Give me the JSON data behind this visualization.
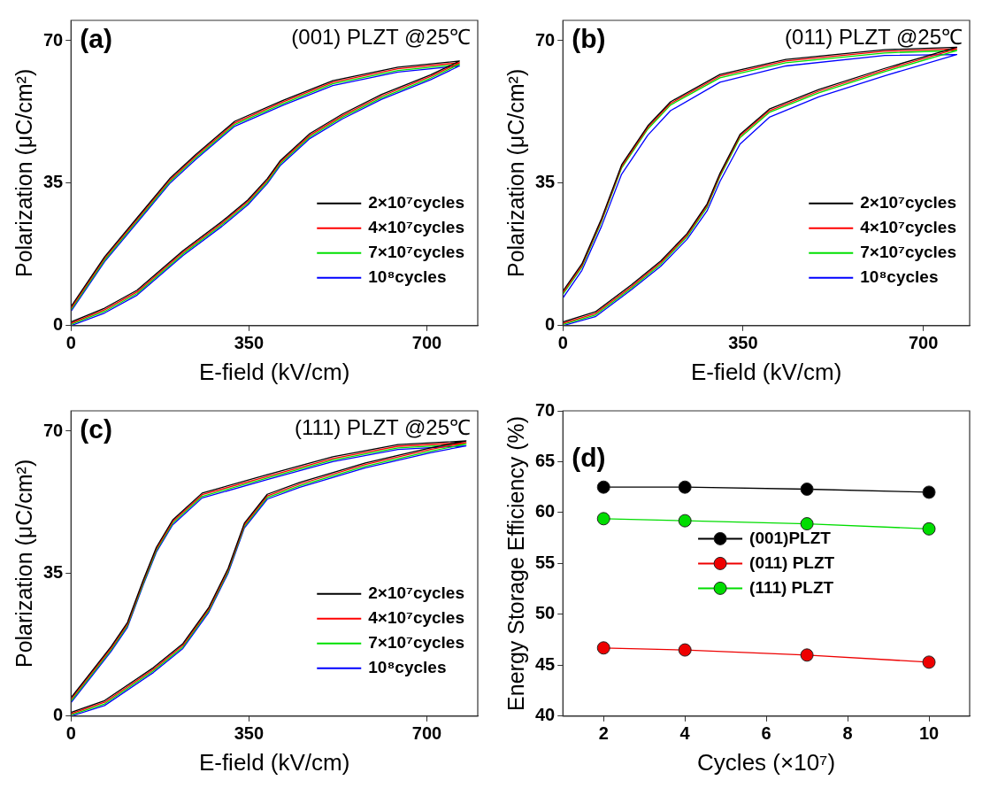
{
  "chart_data": [
    {
      "type": "line",
      "xlabel": "E-field (kV/cm)",
      "ylabel": "Polarization (μC/cm²)",
      "annotations": [
        "(a)",
        "(001) PLZT @25℃"
      ],
      "xlim": [
        0,
        800
      ],
      "ylim": [
        0,
        75
      ],
      "xticks": [
        0,
        350,
        700
      ],
      "yticks": [
        0,
        35,
        70
      ],
      "grid": false,
      "legend": "bottom right",
      "marker": "none",
      "line_style": "solid",
      "x": [
        0,
        66,
        130,
        220,
        297,
        348,
        386,
        412,
        470,
        534,
        611,
        707,
        764,
        643,
        515,
        418,
        322,
        245,
        194,
        130,
        66,
        0
      ],
      "series": [
        {
          "name": "2×10⁷cycles",
          "color": "#000000",
          "values": [
            0.9,
            4.3,
            8.7,
            18.4,
            25.6,
            30.9,
            36.1,
            40.6,
            47.2,
            52,
            56.8,
            61.6,
            65,
            63.5,
            60.2,
            55.4,
            50.2,
            42,
            36.1,
            26.5,
            16.9,
            4.7
          ]
        },
        {
          "name": "4×10⁷cycles",
          "color": "#ff0000",
          "values": [
            0.6,
            3.9,
            8.3,
            18,
            25.2,
            30.5,
            35.7,
            40.2,
            46.8,
            51.6,
            56.4,
            61.2,
            64.6,
            63.1,
            59.8,
            55,
            49.8,
            41.6,
            35.7,
            26.1,
            16.5,
            4.3
          ]
        },
        {
          "name": "7×10⁷cycles",
          "color": "#00e000",
          "values": [
            0.3,
            3.5,
            7.9,
            17.6,
            24.8,
            30.1,
            35.3,
            39.8,
            46.4,
            51.2,
            56,
            60.8,
            64.2,
            62.7,
            59.4,
            54.6,
            49.4,
            41.2,
            35.3,
            25.7,
            16.1,
            3.9
          ]
        },
        {
          "name": "10⁸cycles",
          "color": "#0000ff",
          "values": [
            0,
            3.1,
            7.5,
            17.2,
            24.4,
            29.7,
            34.9,
            39.4,
            46,
            50.8,
            55.6,
            60.4,
            63.8,
            62.3,
            59,
            54.2,
            49,
            40.8,
            34.9,
            25.3,
            15.7,
            3.5
          ]
        }
      ]
    },
    {
      "type": "line",
      "xlabel": "E-field (kV/cm)",
      "ylabel": "Polarization (μC/cm²)",
      "annotations": [
        "(b)",
        "(011) PLZT @25℃"
      ],
      "xlim": [
        0,
        790
      ],
      "ylim": [
        0,
        75
      ],
      "xticks": [
        0,
        350,
        700
      ],
      "yticks": [
        0,
        35,
        70
      ],
      "grid": false,
      "legend": "bottom right",
      "marker": "none",
      "line_style": "solid",
      "x": [
        0,
        63,
        133,
        190,
        241,
        280,
        305,
        344,
        401,
        497,
        625,
        765,
        625,
        433,
        305,
        209,
        165,
        114,
        75,
        37,
        0
      ],
      "series": [
        {
          "name": "2×10⁷cycles",
          "color": "#000000",
          "values": [
            0.9,
            3.4,
            10,
            15.9,
            22.6,
            29.9,
            37.4,
            47,
            53.2,
            58,
            63.2,
            68.4,
            67.8,
            65.4,
            61.7,
            55,
            49.1,
            39.5,
            26.3,
            15.2,
            8.5
          ]
        },
        {
          "name": "4×10⁷cycles",
          "color": "#ff0000",
          "values": [
            0.6,
            3,
            9.6,
            15.5,
            22.2,
            29.5,
            37,
            46.6,
            52.8,
            57.6,
            62.8,
            68,
            67.4,
            65,
            61.3,
            54.6,
            48.7,
            39.1,
            25.9,
            14.8,
            8.1
          ]
        },
        {
          "name": "7×10⁷cycles",
          "color": "#00e000",
          "values": [
            0.3,
            2.6,
            9.2,
            15.1,
            21.8,
            29.1,
            36.6,
            46.2,
            52.4,
            57.2,
            62.4,
            67.6,
            67,
            64.6,
            60.9,
            54.2,
            48.3,
            38.7,
            25.5,
            14.4,
            7.7
          ]
        },
        {
          "name": "10⁸cycles",
          "color": "#0000ff",
          "values": [
            0,
            2.2,
            8.8,
            14.6,
            21.2,
            28.2,
            35.4,
            44.6,
            51.2,
            56.2,
            61.4,
            66.6,
            66.4,
            63.8,
            59.8,
            52.8,
            46.8,
            37.2,
            24.4,
            13.6,
            6.8
          ]
        }
      ]
    },
    {
      "type": "line",
      "xlabel": "E-field (kV/cm)",
      "ylabel": "Polarization (μC/cm²)",
      "annotations": [
        "(c)",
        "(111) PLZT @25℃"
      ],
      "xlim": [
        0,
        800
      ],
      "ylim": [
        0,
        75
      ],
      "xticks": [
        0,
        350,
        700
      ],
      "yticks": [
        0,
        35,
        70
      ],
      "grid": false,
      "legend": "bottom right",
      "marker": "none",
      "line_style": "solid",
      "x": [
        0,
        66,
        162,
        220,
        271,
        309,
        341,
        386,
        450,
        579,
        707,
        777,
        643,
        515,
        386,
        258,
        200,
        168,
        142,
        111,
        79,
        0
      ],
      "series": [
        {
          "name": "2×10⁷cycles",
          "color": "#000000",
          "values": [
            0.9,
            3.8,
            11.9,
            17.8,
            26.7,
            36.3,
            47.4,
            54.5,
            57.4,
            62.2,
            65.9,
            67.6,
            66.7,
            63.7,
            59.3,
            54.8,
            48.2,
            41.5,
            33.4,
            23,
            17.1,
            4.5
          ]
        },
        {
          "name": "4×10⁷cycles",
          "color": "#ff0000",
          "values": [
            0.6,
            3.4,
            11.5,
            17.4,
            26.3,
            35.9,
            47,
            54.1,
            57,
            61.8,
            65.5,
            67.2,
            66.3,
            63.3,
            58.9,
            54.4,
            47.8,
            41.1,
            33,
            22.6,
            16.7,
            4.1
          ]
        },
        {
          "name": "7×10⁷cycles",
          "color": "#00e000",
          "values": [
            0.3,
            3,
            11.1,
            17,
            25.9,
            35.5,
            46.6,
            53.7,
            56.6,
            61.4,
            65.1,
            66.8,
            65.9,
            62.9,
            58.5,
            54,
            47.4,
            40.7,
            32.6,
            22.2,
            16.3,
            3.7
          ]
        },
        {
          "name": "10⁸cycles",
          "color": "#0000ff",
          "values": [
            0,
            2.6,
            10.7,
            16.6,
            25.5,
            35.1,
            46.2,
            53.3,
            56.2,
            61,
            64.7,
            66.4,
            65.5,
            62.5,
            58.1,
            53.6,
            47,
            40.3,
            32.2,
            21.8,
            15.9,
            3.3
          ]
        }
      ]
    },
    {
      "type": "line",
      "xlabel": "Cycles (×10⁷)",
      "ylabel": "Energy Storage Efficiency (%)",
      "annotations": [
        "(d)"
      ],
      "xlim": [
        1,
        11
      ],
      "ylim": [
        40,
        70
      ],
      "xticks": [
        2,
        4,
        6,
        8,
        10
      ],
      "yticks": [
        40,
        45,
        50,
        55,
        60,
        65,
        70
      ],
      "grid": false,
      "legend": "center",
      "marker": "circle",
      "line_style": "solid",
      "x": [
        2,
        4,
        7,
        10
      ],
      "series": [
        {
          "name": "(001)PLZT",
          "color": "#000000",
          "values": [
            62.5,
            62.5,
            62.3,
            62.0
          ]
        },
        {
          "name": "(011) PLZT",
          "color": "#ee0000",
          "values": [
            46.7,
            46.5,
            46.0,
            45.3
          ]
        },
        {
          "name": "(111) PLZT",
          "color": "#00dd00",
          "values": [
            59.4,
            59.2,
            58.9,
            58.4
          ]
        }
      ]
    }
  ]
}
